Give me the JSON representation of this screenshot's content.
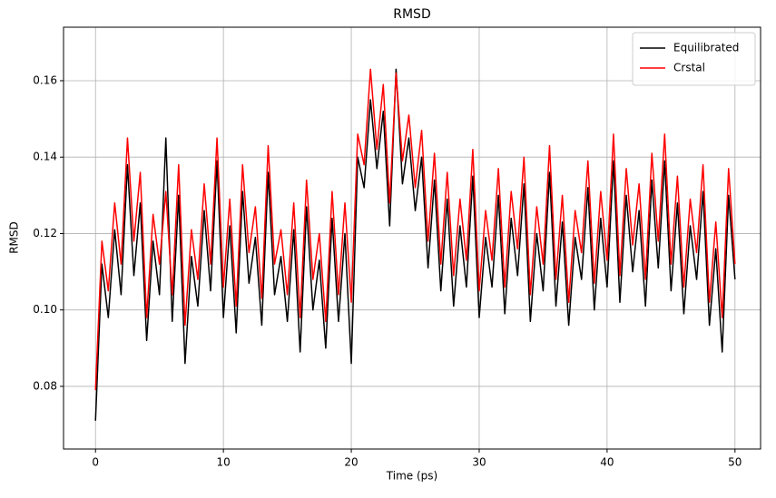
{
  "chart_data": {
    "type": "line",
    "title": "RMSD",
    "xlabel": "Time (ps)",
    "ylabel": "RMSD",
    "x": [
      0,
      0.5,
      1,
      1.5,
      2,
      2.5,
      3,
      3.5,
      4,
      4.5,
      5,
      5.5,
      6,
      6.5,
      7,
      7.5,
      8,
      8.5,
      9,
      9.5,
      10,
      10.5,
      11,
      11.5,
      12,
      12.5,
      13,
      13.5,
      14,
      14.5,
      15,
      15.5,
      16,
      16.5,
      17,
      17.5,
      18,
      18.5,
      19,
      19.5,
      20,
      20.5,
      21,
      21.5,
      22,
      22.5,
      23,
      23.5,
      24,
      24.5,
      25,
      25.5,
      26,
      26.5,
      27,
      27.5,
      28,
      28.5,
      29,
      29.5,
      30,
      30.5,
      31,
      31.5,
      32,
      32.5,
      33,
      33.5,
      34,
      34.5,
      35,
      35.5,
      36,
      36.5,
      37,
      37.5,
      38,
      38.5,
      39,
      39.5,
      40,
      40.5,
      41,
      41.5,
      42,
      42.5,
      43,
      43.5,
      44,
      44.5,
      45,
      45.5,
      46,
      46.5,
      47,
      47.5,
      48,
      48.5,
      49,
      49.5,
      50
    ],
    "series": [
      {
        "name": "Equilibrated",
        "color": "#000000",
        "values": [
          0.071,
          0.112,
          0.098,
          0.121,
          0.104,
          0.138,
          0.109,
          0.128,
          0.092,
          0.118,
          0.104,
          0.145,
          0.097,
          0.13,
          0.086,
          0.114,
          0.101,
          0.126,
          0.105,
          0.139,
          0.098,
          0.122,
          0.094,
          0.131,
          0.107,
          0.119,
          0.096,
          0.136,
          0.104,
          0.114,
          0.097,
          0.121,
          0.089,
          0.127,
          0.1,
          0.113,
          0.09,
          0.124,
          0.097,
          0.12,
          0.086,
          0.14,
          0.132,
          0.155,
          0.137,
          0.152,
          0.122,
          0.163,
          0.133,
          0.145,
          0.126,
          0.14,
          0.111,
          0.134,
          0.105,
          0.129,
          0.101,
          0.122,
          0.106,
          0.135,
          0.098,
          0.119,
          0.106,
          0.13,
          0.099,
          0.124,
          0.109,
          0.133,
          0.097,
          0.12,
          0.105,
          0.136,
          0.101,
          0.123,
          0.096,
          0.119,
          0.108,
          0.132,
          0.1,
          0.124,
          0.106,
          0.139,
          0.102,
          0.13,
          0.11,
          0.126,
          0.101,
          0.134,
          0.111,
          0.139,
          0.105,
          0.128,
          0.099,
          0.122,
          0.108,
          0.131,
          0.096,
          0.116,
          0.089,
          0.13,
          0.108
        ]
      },
      {
        "name": "Crstal",
        "color": "#ff0000",
        "values": [
          0.079,
          0.118,
          0.105,
          0.128,
          0.112,
          0.145,
          0.118,
          0.136,
          0.098,
          0.125,
          0.112,
          0.131,
          0.104,
          0.138,
          0.096,
          0.121,
          0.108,
          0.133,
          0.112,
          0.145,
          0.106,
          0.129,
          0.101,
          0.138,
          0.115,
          0.127,
          0.103,
          0.143,
          0.112,
          0.121,
          0.104,
          0.128,
          0.098,
          0.134,
          0.108,
          0.12,
          0.097,
          0.131,
          0.104,
          0.128,
          0.102,
          0.146,
          0.138,
          0.163,
          0.142,
          0.159,
          0.128,
          0.162,
          0.139,
          0.151,
          0.132,
          0.147,
          0.118,
          0.141,
          0.112,
          0.136,
          0.109,
          0.129,
          0.113,
          0.142,
          0.105,
          0.126,
          0.113,
          0.137,
          0.106,
          0.131,
          0.116,
          0.14,
          0.104,
          0.127,
          0.112,
          0.143,
          0.108,
          0.13,
          0.102,
          0.126,
          0.115,
          0.139,
          0.107,
          0.131,
          0.113,
          0.146,
          0.109,
          0.137,
          0.117,
          0.133,
          0.108,
          0.141,
          0.118,
          0.146,
          0.112,
          0.135,
          0.106,
          0.129,
          0.115,
          0.138,
          0.102,
          0.123,
          0.098,
          0.137,
          0.112
        ]
      }
    ],
    "xlim": [
      -2.5,
      52
    ],
    "ylim": [
      0.0636,
      0.174
    ],
    "xticks": [
      0,
      10,
      20,
      30,
      40,
      50
    ],
    "yticks": [
      0.08,
      {
        "value": 0.1,
        "label": "0.10"
      },
      0.12,
      0.14,
      0.16
    ],
    "grid": true,
    "legend": "upper right"
  }
}
